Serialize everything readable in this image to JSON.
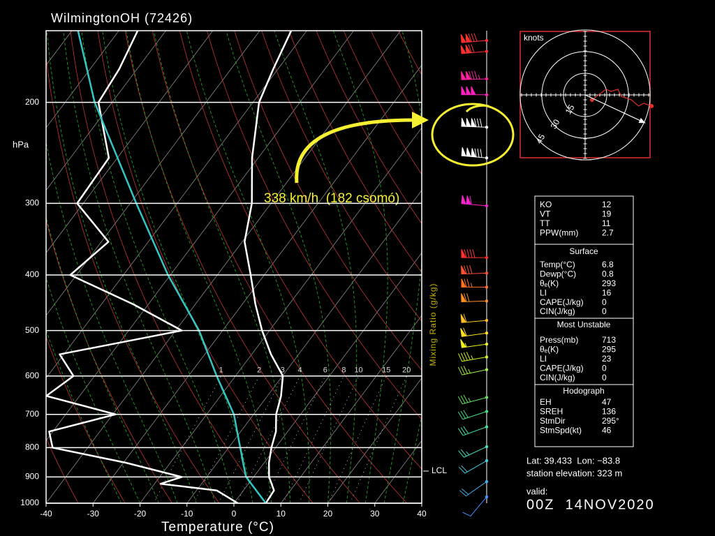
{
  "chart_data": {
    "type": "skewt",
    "title": "WilmingtonOH (72426)",
    "y_label": "hPa",
    "x_label": "Temperature (°C)",
    "mixing_label": "Mixing Ratio (g/kg)",
    "xlim": [
      -40,
      40
    ],
    "xticks": [
      -40,
      -30,
      -20,
      -10,
      0,
      10,
      20,
      30,
      40
    ],
    "ylim": [
      1000,
      150
    ],
    "ylog": true,
    "yticks": [
      200,
      300,
      400,
      500,
      600,
      700,
      800,
      900,
      1000
    ],
    "grid": true,
    "mixing_ratios": [
      1,
      2,
      3,
      4,
      6,
      8,
      10,
      15,
      20
    ],
    "series": [
      {
        "color": "#ffffff",
        "pressure": [
          1000,
          950,
          900,
          850,
          800,
          750,
          700,
          650,
          600,
          550,
          500,
          450,
          400,
          350,
          300,
          250,
          200,
          175,
          150
        ],
        "values": [
          6.8,
          6.5,
          3.3,
          1.0,
          -0.9,
          -2.5,
          -5.2,
          -7.1,
          -9.9,
          -15.9,
          -21.6,
          -27.2,
          -32.9,
          -39.5,
          -44.1,
          -51.3,
          -58.7,
          -61,
          -63.3
        ]
      },
      {
        "color": "#ffffff",
        "pressure": [
          1000,
          950,
          925,
          900,
          850,
          800,
          750,
          700,
          650,
          600,
          550,
          500,
          450,
          400,
          350,
          300,
          250,
          200,
          175,
          150
        ],
        "values": [
          0.8,
          -5.7,
          -18.7,
          -15.3,
          -29.5,
          -47.5,
          -50.8,
          -39.4,
          -57.1,
          -54.5,
          -60.9,
          -38.7,
          -53.2,
          -71.3,
          -68.5,
          -81.3,
          -81.8,
          -92.9,
          -93.8,
          -96
        ]
      },
      {
        "color": "#33c6c6",
        "pressure": [
          1000,
          900,
          850,
          700,
          600,
          500,
          400,
          300,
          200,
          150
        ],
        "values": [
          6.8,
          -1.6,
          -4.5,
          -14.2,
          -24,
          -35,
          -50.5,
          -68.7,
          -93.7,
          -108.7
        ]
      }
    ],
    "lcl": {
      "label": "LCL",
      "pressure": 879
    },
    "annotation": "338 km/h  (182 csomó)"
  },
  "wind": {
    "pressure": [
      156,
      163,
      182,
      194,
      221,
      250,
      303,
      373,
      397,
      420,
      444,
      480,
      505,
      528,
      556,
      585,
      654,
      692,
      736,
      797,
      843,
      917,
      975
    ],
    "speed": [
      130,
      120,
      135,
      150,
      182,
      182,
      110,
      90,
      80,
      75,
      70,
      60,
      60,
      55,
      45,
      35,
      35,
      30,
      30,
      25,
      20,
      20,
      10
    ],
    "direction": [
      265,
      265,
      268,
      270,
      272,
      275,
      275,
      270,
      268,
      270,
      268,
      265,
      262,
      262,
      260,
      258,
      255,
      252,
      250,
      245,
      240,
      235,
      220
    ],
    "colors": [
      "#ff3030",
      "#ff3030",
      "#ff20a0",
      "#ff20c0",
      "#ffffff",
      "#ffffff",
      "#ff20d0",
      "#ff3030",
      "#ff5030",
      "#ff7020",
      "#ff9020",
      "#ffc020",
      "#ffe020",
      "#f0f020",
      "#d0f020",
      "#a0f040",
      "#60e060",
      "#40e080",
      "#40e0a0",
      "#40e0c0",
      "#40d0e0",
      "#40b0f0",
      "#4090ff"
    ]
  },
  "hodograph": {
    "unit_label": "knots",
    "rings": [
      15,
      30,
      45
    ],
    "u": [
      4.8,
      14.5,
      17.9,
      22.7,
      25,
      32,
      37,
      40.6,
      46
    ],
    "v": [
      -3.4,
      3.9,
      2.4,
      3.9,
      -1,
      -3.4,
      -7.7,
      -5.8,
      -7.7
    ]
  },
  "stats_table": {
    "indices": [
      [
        "KO",
        12
      ],
      [
        "VT",
        19
      ],
      [
        "TT",
        11
      ],
      [
        "PPW(mm)",
        2.7
      ]
    ],
    "surface": {
      "title": "Surface",
      "rows": [
        [
          "Temp(°C)",
          6.8
        ],
        [
          "Dewp(°C)",
          0.8
        ],
        [
          "θₑ(K)",
          293
        ],
        [
          "LI",
          16
        ],
        [
          "CAPE(J/kg)",
          0
        ],
        [
          "CIN(J/kg)",
          0
        ]
      ]
    },
    "most_unstable": {
      "title": "Most Unstable",
      "rows": [
        [
          "Press(mb)",
          713
        ],
        [
          "θₑ(K)",
          295
        ],
        [
          "LI",
          23
        ],
        [
          "CAPE(J/kg)",
          0
        ],
        [
          "CIN(J/kg)",
          0
        ]
      ]
    },
    "hodograph": {
      "title": "Hodograph",
      "rows": [
        [
          "EH",
          47
        ],
        [
          "SREH",
          136
        ],
        [
          "StmDir",
          {
            "value": 295,
            "label": "295°"
          }
        ],
        [
          "StmSpd(kt)",
          46
        ]
      ]
    }
  },
  "station": {
    "lat_lon": "Lat: 39.433  Lon: −83.8",
    "elevation": "station elevation: 323 m",
    "valid_label": "valid:",
    "valid_time": "00Z  14NOV2020"
  }
}
